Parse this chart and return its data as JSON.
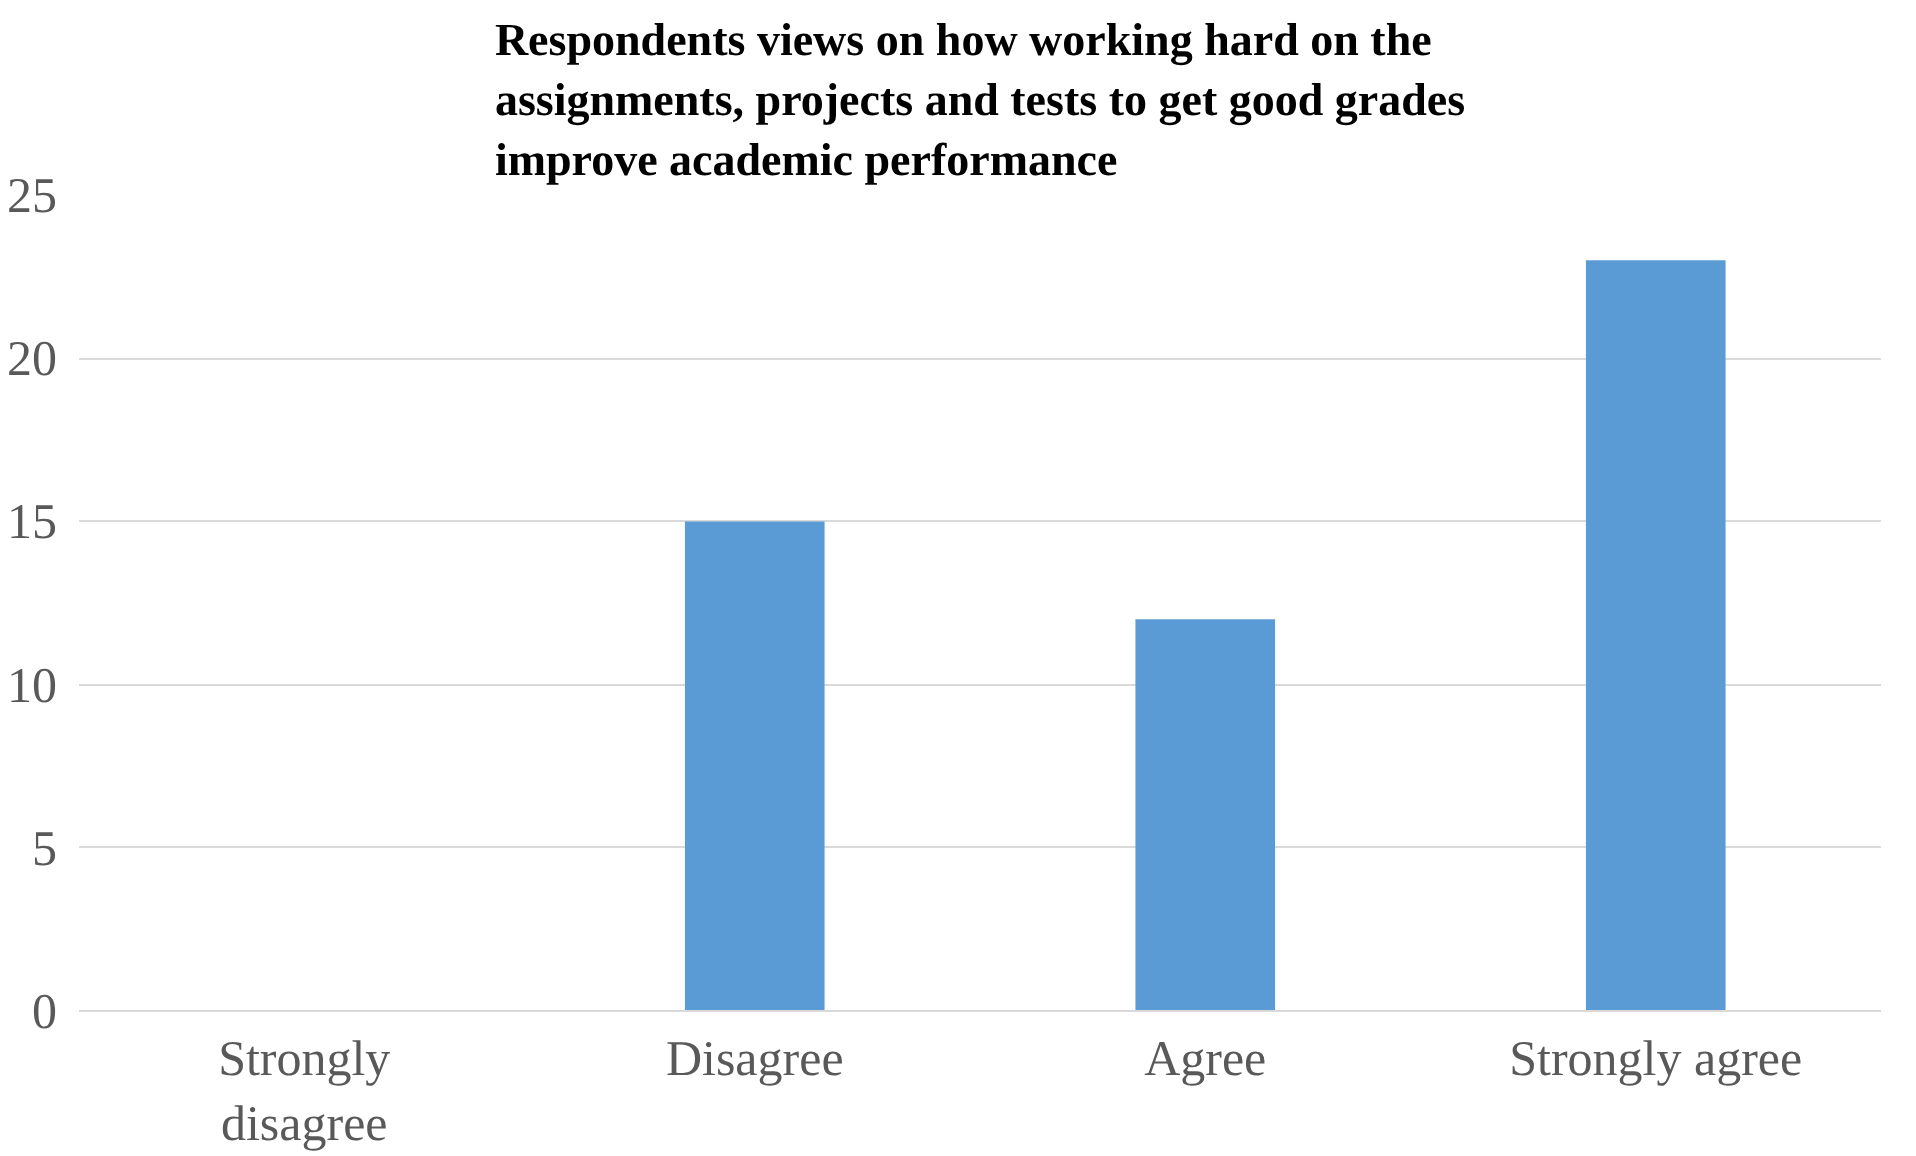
{
  "chart_data": {
    "type": "bar",
    "title": "Respondents views on how working hard on the assignments, projects and tests to get good grades improve academic performance",
    "categories": [
      "Strongly disagree",
      "Disagree",
      "Agree",
      "Strongly agree"
    ],
    "values": [
      0,
      15,
      12,
      23
    ],
    "color": "#5b9bd5",
    "ylim": [
      0,
      25
    ],
    "yticks": [
      0,
      5,
      10,
      15,
      20,
      25
    ],
    "grid": "y"
  }
}
